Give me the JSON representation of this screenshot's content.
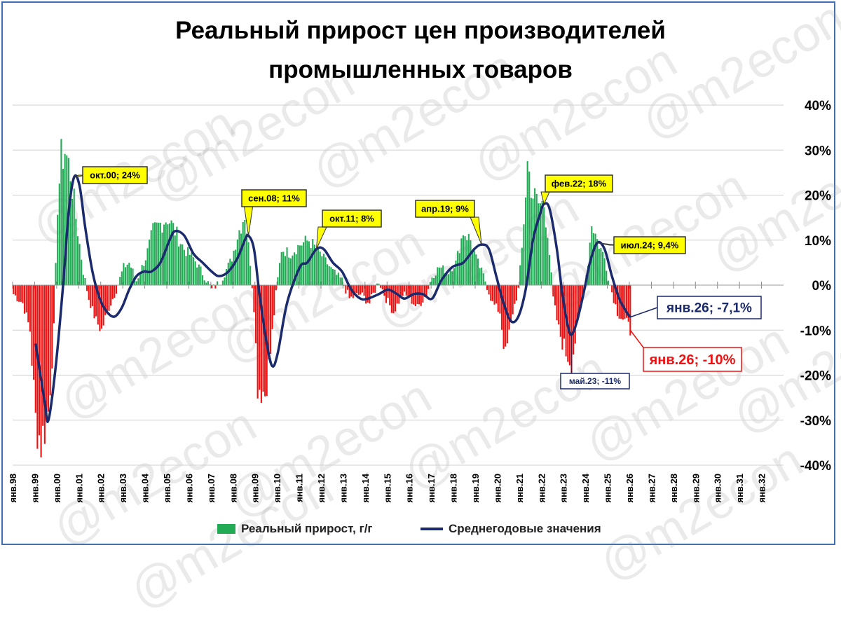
{
  "title_line1": "Реальный прирост цен производителей",
  "title_line2": "промышленных товаров",
  "watermark": "@m2econ",
  "colors": {
    "positive_bar": "#22aa55",
    "negative_bar": "#ee1111",
    "line": "#1a2a6c",
    "callout_fill": "#ffff00",
    "grid": "#d0d0d0",
    "frame": "#3f6fb5"
  },
  "legend": {
    "bars": "Реальный прирост, г/г",
    "line": "Среднегодовые значения"
  },
  "chart_data": {
    "type": "bar+line",
    "x_start": "1998-01",
    "x_end": "2032-12",
    "ylim": [
      -40,
      40
    ],
    "y_ticks": [
      "40%",
      "30%",
      "20%",
      "10%",
      "0%",
      "-10%",
      "-20%",
      "-30%",
      "-40%"
    ],
    "x_tick_labels": [
      "янв.98",
      "янв.99",
      "янв.00",
      "янв.01",
      "янв.02",
      "янв.03",
      "янв.04",
      "янв.05",
      "янв.06",
      "янв.07",
      "янв.08",
      "янв.09",
      "янв.10",
      "янв.11",
      "янв.12",
      "янв.13",
      "янв.14",
      "янв.15",
      "янв.16",
      "янв.17",
      "янв.18",
      "янв.19",
      "янв.20",
      "янв.21",
      "янв.22",
      "янв.23",
      "янв.24",
      "янв.25",
      "янв.26",
      "янв.27",
      "янв.28",
      "янв.29",
      "янв.30",
      "янв.31",
      "янв.32"
    ],
    "series": [
      {
        "name": "Реальный прирост, г/г",
        "type": "bar",
        "monthly_anchor_points": [
          [
            "1998-01",
            -2
          ],
          [
            "1998-06",
            -4
          ],
          [
            "1998-10",
            -10
          ],
          [
            "1999-01",
            -30
          ],
          [
            "1999-04",
            -35
          ],
          [
            "1999-08",
            -28
          ],
          [
            "1999-11",
            -10
          ],
          [
            "2000-01",
            18
          ],
          [
            "2000-03",
            28
          ],
          [
            "2000-05",
            30
          ],
          [
            "2000-08",
            25
          ],
          [
            "2000-11",
            15
          ],
          [
            "2001-03",
            3
          ],
          [
            "2001-06",
            -3
          ],
          [
            "2001-10",
            -8
          ],
          [
            "2002-01",
            -10
          ],
          [
            "2002-04",
            -6
          ],
          [
            "2002-09",
            -1
          ],
          [
            "2003-01",
            4
          ],
          [
            "2003-04",
            5
          ],
          [
            "2003-08",
            1
          ],
          [
            "2004-01",
            6
          ],
          [
            "2004-05",
            12
          ],
          [
            "2004-10",
            14
          ],
          [
            "2005-01",
            15
          ],
          [
            "2005-05",
            12
          ],
          [
            "2005-10",
            8
          ],
          [
            "2006-03",
            6
          ],
          [
            "2006-09",
            2
          ],
          [
            "2007-01",
            -1
          ],
          [
            "2007-06",
            1
          ],
          [
            "2007-12",
            6
          ],
          [
            "2008-03",
            11
          ],
          [
            "2008-07",
            16
          ],
          [
            "2008-10",
            5
          ],
          [
            "2008-12",
            -5
          ],
          [
            "2009-02",
            -22
          ],
          [
            "2009-06",
            -24
          ],
          [
            "2009-09",
            -15
          ],
          [
            "2009-12",
            -2
          ],
          [
            "2010-03",
            8
          ],
          [
            "2010-08",
            7
          ],
          [
            "2011-01",
            9
          ],
          [
            "2011-06",
            10
          ],
          [
            "2011-10",
            8
          ],
          [
            "2012-02",
            6
          ],
          [
            "2012-07",
            3
          ],
          [
            "2012-12",
            1
          ],
          [
            "2013-04",
            -3
          ],
          [
            "2013-10",
            -2
          ],
          [
            "2014-03",
            -4
          ],
          [
            "2014-08",
            1
          ],
          [
            "2014-12",
            -3
          ],
          [
            "2015-04",
            -6
          ],
          [
            "2015-09",
            -2
          ],
          [
            "2016-01",
            -3
          ],
          [
            "2016-05",
            -5
          ],
          [
            "2016-10",
            -2
          ],
          [
            "2017-01",
            2
          ],
          [
            "2017-05",
            4
          ],
          [
            "2017-10",
            3
          ],
          [
            "2018-02",
            5
          ],
          [
            "2018-06",
            12
          ],
          [
            "2018-10",
            10
          ],
          [
            "2019-01",
            6
          ],
          [
            "2019-06",
            1
          ],
          [
            "2019-10",
            -4
          ],
          [
            "2020-02",
            -6
          ],
          [
            "2020-05",
            -16
          ],
          [
            "2020-09",
            -6
          ],
          [
            "2020-12",
            -1
          ],
          [
            "2021-02",
            8
          ],
          [
            "2021-05",
            27
          ],
          [
            "2021-08",
            20
          ],
          [
            "2021-11",
            18
          ],
          [
            "2022-02",
            18
          ],
          [
            "2022-04",
            12
          ],
          [
            "2022-07",
            -3
          ],
          [
            "2022-10",
            -10
          ],
          [
            "2023-02",
            -15
          ],
          [
            "2023-05",
            -17
          ],
          [
            "2023-08",
            -10
          ],
          [
            "2023-11",
            -3
          ],
          [
            "2024-02",
            5
          ],
          [
            "2024-04",
            14
          ],
          [
            "2024-07",
            10
          ],
          [
            "2024-11",
            6
          ],
          [
            "2025-02",
            0
          ],
          [
            "2025-06",
            -6
          ],
          [
            "2025-10",
            -8
          ],
          [
            "2026-01",
            -10
          ]
        ]
      },
      {
        "name": "Среднегодовые значения",
        "type": "line",
        "points": [
          [
            "1999-01",
            -13
          ],
          [
            "1999-06",
            -26
          ],
          [
            "1999-08",
            -30
          ],
          [
            "1999-12",
            -18
          ],
          [
            "2000-04",
            0
          ],
          [
            "2000-07",
            16
          ],
          [
            "2000-10",
            24
          ],
          [
            "2001-01",
            22
          ],
          [
            "2001-04",
            13
          ],
          [
            "2001-08",
            3
          ],
          [
            "2001-12",
            -3
          ],
          [
            "2002-04",
            -6
          ],
          [
            "2002-08",
            -7
          ],
          [
            "2002-12",
            -5
          ],
          [
            "2003-04",
            -1
          ],
          [
            "2003-08",
            2
          ],
          [
            "2003-12",
            3
          ],
          [
            "2004-04",
            3
          ],
          [
            "2004-09",
            5
          ],
          [
            "2005-02",
            10
          ],
          [
            "2005-05",
            12
          ],
          [
            "2005-10",
            11
          ],
          [
            "2006-03",
            7
          ],
          [
            "2006-08",
            5
          ],
          [
            "2007-01",
            3
          ],
          [
            "2007-05",
            2
          ],
          [
            "2007-10",
            3
          ],
          [
            "2008-03",
            6
          ],
          [
            "2008-07",
            10
          ],
          [
            "2008-09",
            11
          ],
          [
            "2008-12",
            8
          ],
          [
            "2009-03",
            -2
          ],
          [
            "2009-07",
            -13
          ],
          [
            "2009-10",
            -18
          ],
          [
            "2010-01",
            -15
          ],
          [
            "2010-06",
            -4
          ],
          [
            "2011-01",
            4
          ],
          [
            "2011-05",
            5
          ],
          [
            "2011-10",
            8
          ],
          [
            "2012-02",
            8
          ],
          [
            "2012-07",
            5
          ],
          [
            "2012-12",
            3
          ],
          [
            "2013-05",
            -1
          ],
          [
            "2013-10",
            -3
          ],
          [
            "2014-02",
            -3
          ],
          [
            "2014-08",
            -2
          ],
          [
            "2015-01",
            -1
          ],
          [
            "2015-06",
            -2
          ],
          [
            "2015-10",
            -3
          ],
          [
            "2016-03",
            -2
          ],
          [
            "2016-08",
            -2
          ],
          [
            "2017-01",
            -3
          ],
          [
            "2017-06",
            1
          ],
          [
            "2017-12",
            4
          ],
          [
            "2018-06",
            5
          ],
          [
            "2018-12",
            8
          ],
          [
            "2019-04",
            9
          ],
          [
            "2019-08",
            8
          ],
          [
            "2019-12",
            2
          ],
          [
            "2020-04",
            -4
          ],
          [
            "2020-08",
            -8
          ],
          [
            "2020-12",
            -7
          ],
          [
            "2021-04",
            -1
          ],
          [
            "2021-08",
            10
          ],
          [
            "2021-12",
            16
          ],
          [
            "2022-02",
            18
          ],
          [
            "2022-05",
            17
          ],
          [
            "2022-09",
            8
          ],
          [
            "2022-12",
            -2
          ],
          [
            "2023-03",
            -9
          ],
          [
            "2023-05",
            -11
          ],
          [
            "2023-08",
            -8
          ],
          [
            "2023-12",
            -1
          ],
          [
            "2024-03",
            5
          ],
          [
            "2024-07",
            9.4
          ],
          [
            "2024-11",
            8
          ],
          [
            "2025-03",
            2
          ],
          [
            "2025-07",
            -3
          ],
          [
            "2025-11",
            -6
          ],
          [
            "2026-01",
            -7.1
          ]
        ]
      }
    ],
    "annotations": [
      {
        "label": "окт.00; 24%",
        "x": "2000-10",
        "y": 24,
        "style": "yellow"
      },
      {
        "label": "сен.08; 11%",
        "x": "2008-09",
        "y": 11,
        "style": "yellow"
      },
      {
        "label": "окт.11; 8%",
        "x": "2011-10",
        "y": 8,
        "style": "yellow"
      },
      {
        "label": "апр.19; 9%",
        "x": "2019-04",
        "y": 9,
        "style": "yellow"
      },
      {
        "label": "фев.22; 18%",
        "x": "2022-02",
        "y": 18,
        "style": "yellow"
      },
      {
        "label": "июл.24; 9,4%",
        "x": "2024-07",
        "y": 9.4,
        "style": "yellow"
      },
      {
        "label": "май.23; -11%",
        "x": "2023-05",
        "y": -11,
        "style": "blue-small"
      },
      {
        "label": "янв.26; -7,1%",
        "x": "2026-01",
        "y": -7.1,
        "style": "blue-big"
      },
      {
        "label": "янв.26; -10%",
        "x": "2026-01",
        "y": -10,
        "style": "red-big"
      }
    ]
  }
}
